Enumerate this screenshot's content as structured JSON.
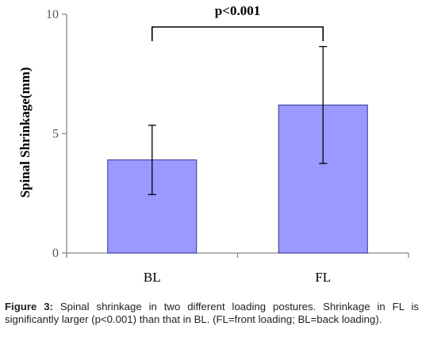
{
  "chart_data": {
    "type": "bar",
    "categories": [
      "BL",
      "FL"
    ],
    "values": [
      3.9,
      6.2
    ],
    "error_bars": [
      1.45,
      2.45
    ],
    "ylabel": "Spinal Shrinkage(mm)",
    "xlabel": "",
    "ylim": [
      0,
      10
    ],
    "yticks": [
      "0",
      "5",
      "10"
    ],
    "significance_label": "p<0.001",
    "grid": false,
    "bar_color": "#9999ff",
    "bar_edge_color": "#333399"
  },
  "caption": {
    "label": "Figure 3:",
    "text": "Spinal shrinkage in two different loading postures. Shrinkage in FL is significantly larger (p<0.001) than that in BL. (FL=front loading; BL=back loading)."
  }
}
